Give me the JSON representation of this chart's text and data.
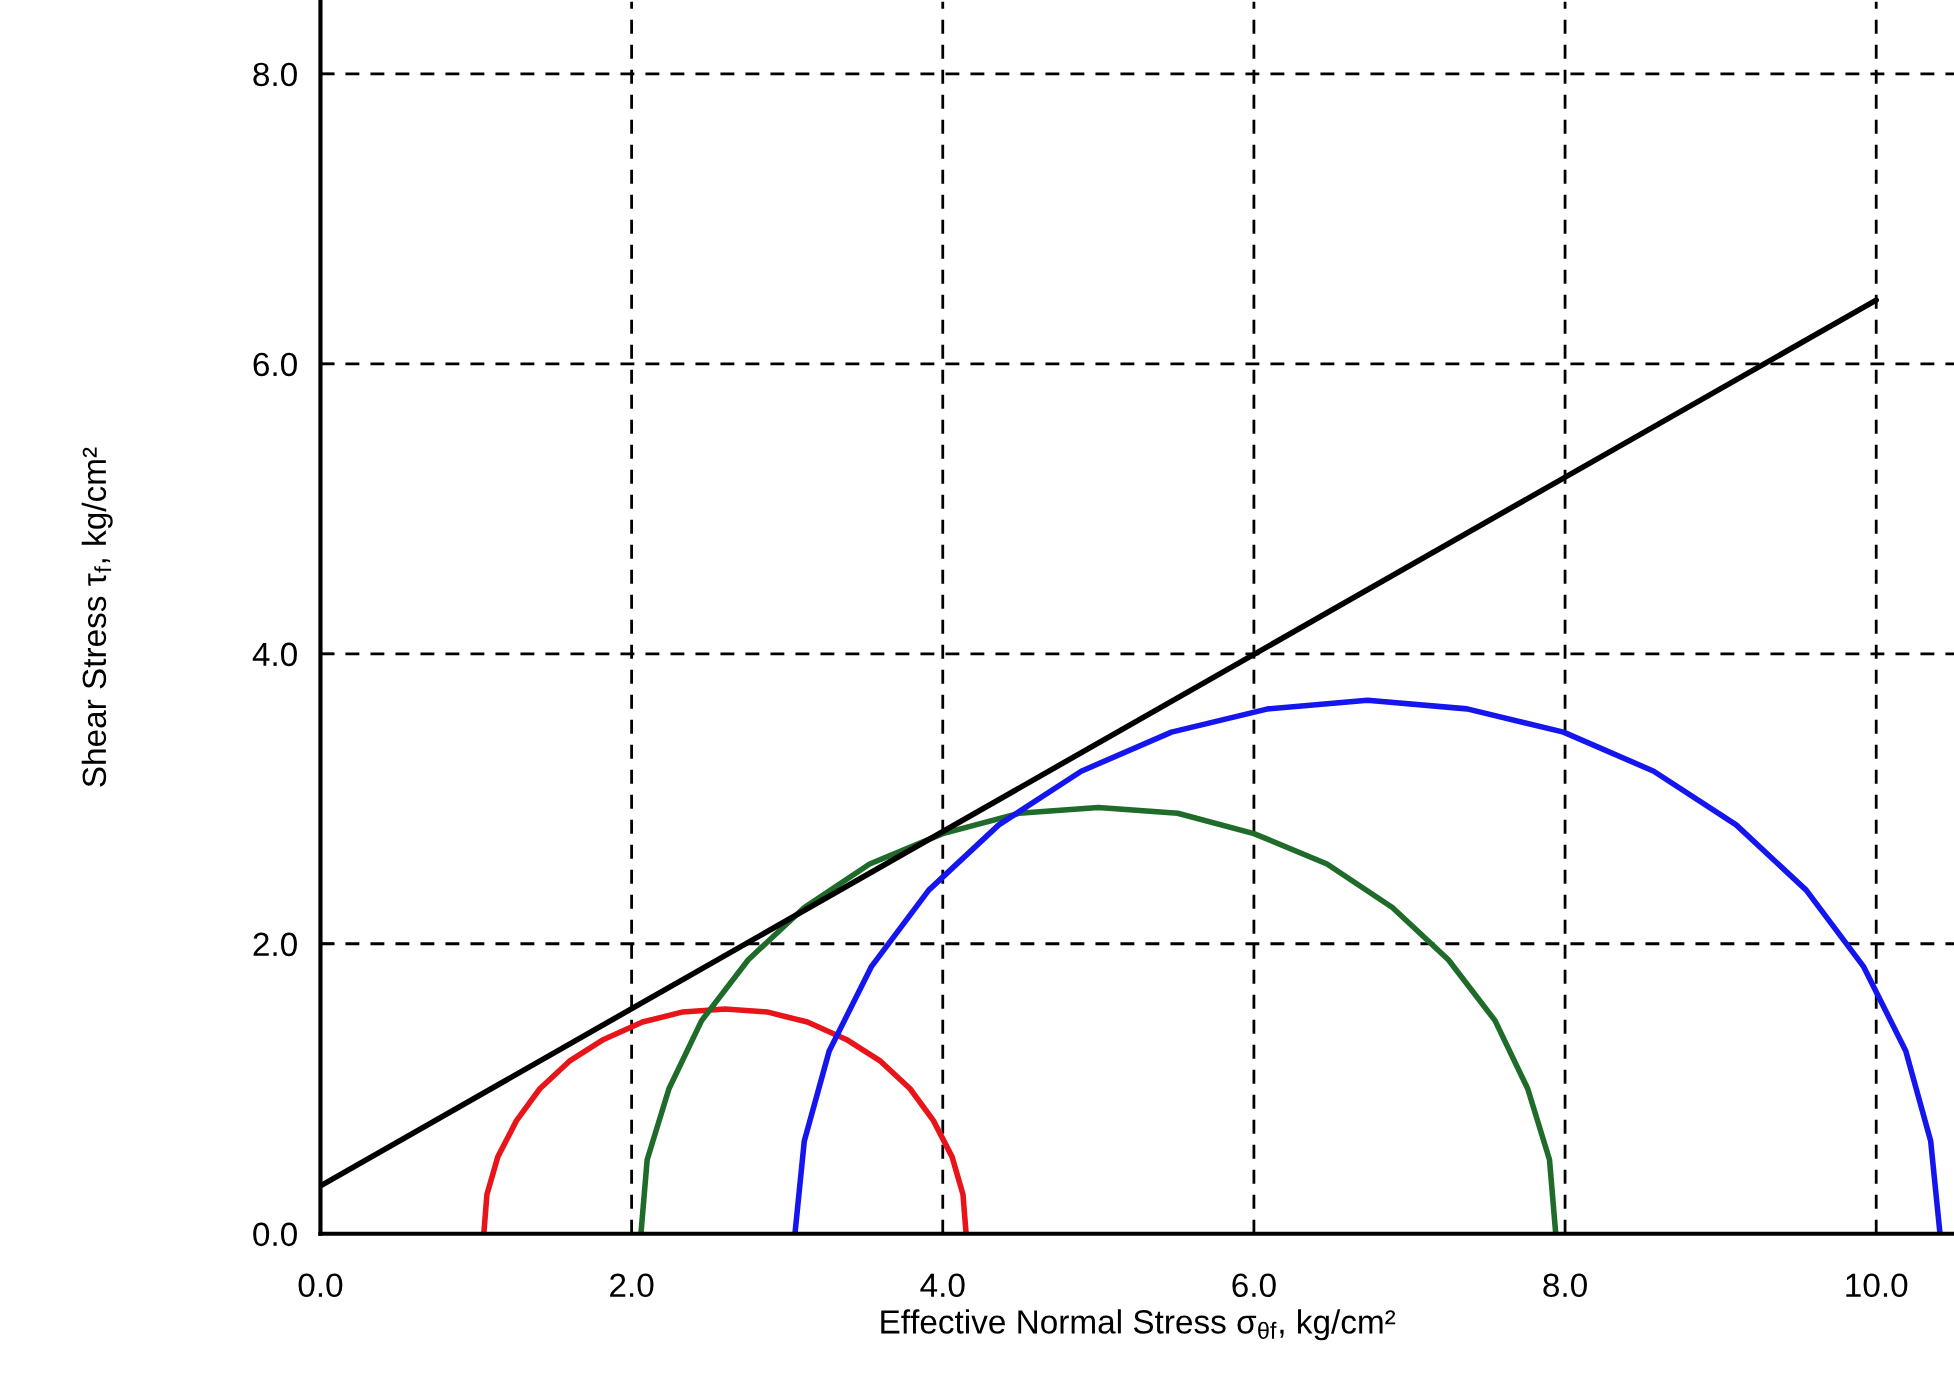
{
  "chart_data": {
    "type": "line",
    "xlabel": "Effective Normal Stress σ$_{θf}$, kg/cm²",
    "ylabel": "Shear Stress τ$_{f}$, kg/cm²",
    "series": [
      {
        "color": "#e8141a",
        "x": [
          1.05,
          1.07,
          1.14,
          1.26,
          1.41,
          1.6,
          1.82,
          2.07,
          2.33,
          2.6,
          2.87,
          3.13,
          3.38,
          3.6,
          3.79,
          3.94,
          4.06,
          4.13,
          4.15
        ],
        "values": [
          0,
          0.27,
          0.53,
          0.78,
          1.0,
          1.19,
          1.34,
          1.46,
          1.53,
          1.55,
          1.53,
          1.46,
          1.34,
          1.19,
          1.0,
          0.78,
          0.53,
          0.27,
          0
        ]
      },
      {
        "color": "#1e6b2a",
        "x": [
          2.06,
          2.1,
          2.24,
          2.45,
          2.75,
          3.11,
          3.53,
          4.0,
          4.49,
          5.0,
          5.51,
          6.0,
          6.47,
          6.89,
          7.25,
          7.55,
          7.76,
          7.9,
          7.94
        ],
        "values": [
          0,
          0.51,
          1.0,
          1.47,
          1.89,
          2.25,
          2.55,
          2.76,
          2.9,
          2.94,
          2.9,
          2.76,
          2.55,
          2.25,
          1.89,
          1.47,
          1.0,
          0.51,
          0
        ]
      },
      {
        "color": "#1515f0",
        "x": [
          3.05,
          3.11,
          3.27,
          3.54,
          3.91,
          4.36,
          4.89,
          5.47,
          6.09,
          6.73,
          7.37,
          7.99,
          8.57,
          9.1,
          9.55,
          9.92,
          10.19,
          10.35,
          10.41
        ],
        "values": [
          0,
          0.64,
          1.26,
          1.84,
          2.37,
          2.82,
          3.19,
          3.46,
          3.62,
          3.68,
          3.62,
          3.46,
          3.19,
          2.82,
          2.37,
          1.84,
          1.26,
          0.64,
          0
        ]
      },
      {
        "color": "#000000",
        "x": [
          0,
          10
        ],
        "values": [
          0.33,
          6.44
        ]
      }
    ],
    "xlim": [
      0,
      10.5
    ],
    "ylim": [
      0,
      8.5
    ],
    "xticks": [
      {
        "value": 0,
        "label": "0.0"
      },
      {
        "value": 2,
        "label": "2.0"
      },
      {
        "value": 4,
        "label": "4.0"
      },
      {
        "value": 6,
        "label": "6.0"
      },
      {
        "value": 8,
        "label": "8.0"
      },
      {
        "value": 10,
        "label": "10.0"
      }
    ],
    "yticks": [
      {
        "value": 0,
        "label": "0.0"
      },
      {
        "value": 2,
        "label": "2.0"
      },
      {
        "value": 4,
        "label": "4.0"
      },
      {
        "value": 6,
        "label": "6.0"
      },
      {
        "value": 8,
        "label": "8.0"
      }
    ],
    "grid": true,
    "line_style": "solid",
    "marker": "none"
  }
}
